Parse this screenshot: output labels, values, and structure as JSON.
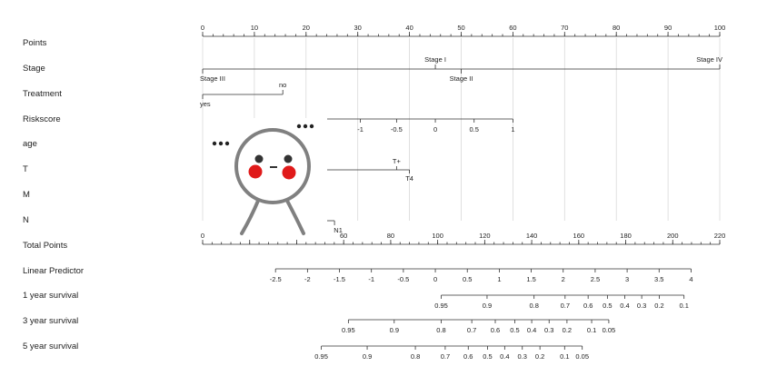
{
  "chart_data": {
    "type": "nomogram",
    "title": "",
    "colors": {
      "axis": "#333333",
      "grid": "#d9d9d9",
      "text": "#222222"
    },
    "rows": [
      {
        "label": "Points",
        "id": "points",
        "scale": {
          "min": 0,
          "max": 100,
          "major": [
            0,
            10,
            20,
            30,
            40,
            50,
            60,
            70,
            80,
            90,
            100
          ],
          "minor_step": 2
        }
      },
      {
        "label": "Stage",
        "id": "stage",
        "categories": [
          {
            "name": "Stage III",
            "points": 0,
            "pos": "below"
          },
          {
            "name": "Stage I",
            "points": 45,
            "pos": "above"
          },
          {
            "name": "Stage II",
            "points": 50,
            "pos": "below"
          },
          {
            "name": "Stage IV",
            "points": 100,
            "pos": "above"
          }
        ]
      },
      {
        "label": "Treatment",
        "id": "treatment",
        "categories": [
          {
            "name": "yes",
            "points": 0,
            "pos": "below"
          },
          {
            "name": "no",
            "points": 15.5,
            "pos": "above"
          }
        ]
      },
      {
        "label": "Riskscore",
        "id": "riskscore",
        "scale_start": 24,
        "ticks": [
          {
            "value": "-1",
            "points": 30.5
          },
          {
            "value": "-0.5",
            "points": 37.5
          },
          {
            "value": "0",
            "points": 45
          },
          {
            "value": "0.5",
            "points": 52.5
          },
          {
            "value": "1",
            "points": 60
          }
        ]
      },
      {
        "label": "age",
        "id": "age",
        "categories": []
      },
      {
        "label": "T",
        "id": "t",
        "categories": [
          {
            "name": "T+",
            "points": 37.5,
            "pos": "above"
          },
          {
            "name": "T4",
            "points": 40,
            "pos": "below"
          }
        ]
      },
      {
        "label": "M",
        "id": "m",
        "categories": []
      },
      {
        "label": "N",
        "id": "n",
        "categories": [
          {
            "name": "N1",
            "points": 25.5,
            "pos": "below"
          }
        ]
      },
      {
        "label": "Total Points",
        "id": "total_points",
        "scale": {
          "min": 0,
          "max": 220,
          "major": [
            0,
            20,
            40,
            60,
            80,
            100,
            120,
            140,
            160,
            180,
            200,
            220
          ],
          "minor_step": 4
        }
      },
      {
        "label": "Linear Predictor",
        "id": "linear_predictor",
        "ticks": [
          {
            "value": "-2.5",
            "points": 31
          },
          {
            "value": "-2",
            "points": 44.6
          },
          {
            "value": "-1.5",
            "points": 58.2
          },
          {
            "value": "-1",
            "points": 71.8
          },
          {
            "value": "-0.5",
            "points": 85.4
          },
          {
            "value": "0",
            "points": 99
          },
          {
            "value": "0.5",
            "points": 112.6
          },
          {
            "value": "1",
            "points": 126.2
          },
          {
            "value": "1.5",
            "points": 139.8
          },
          {
            "value": "2",
            "points": 153.4
          },
          {
            "value": "2.5",
            "points": 167
          },
          {
            "value": "3",
            "points": 180.6
          },
          {
            "value": "3.5",
            "points": 194.2
          },
          {
            "value": "4",
            "points": 207.8
          }
        ]
      },
      {
        "label": "1 year survival",
        "id": "survival_1y",
        "ticks": [
          {
            "value": "0.95",
            "points": 101.5
          },
          {
            "value": "0.9",
            "points": 121
          },
          {
            "value": "0.8",
            "points": 141
          },
          {
            "value": "0.7",
            "points": 154.2
          },
          {
            "value": "0.6",
            "points": 164
          },
          {
            "value": "0.5",
            "points": 172.2
          },
          {
            "value": "0.4",
            "points": 179.6
          },
          {
            "value": "0.3",
            "points": 186.8
          },
          {
            "value": "0.2",
            "points": 194.3
          },
          {
            "value": "0.1",
            "points": 204.8
          }
        ]
      },
      {
        "label": "3 year survival",
        "id": "survival_3y",
        "ticks": [
          {
            "value": "0.95",
            "points": 62
          },
          {
            "value": "0.9",
            "points": 81.5
          },
          {
            "value": "0.8",
            "points": 101.5
          },
          {
            "value": "0.7",
            "points": 114.5
          },
          {
            "value": "0.6",
            "points": 124.5
          },
          {
            "value": "0.5",
            "points": 132.8
          },
          {
            "value": "0.4",
            "points": 140
          },
          {
            "value": "0.3",
            "points": 147.4
          },
          {
            "value": "0.2",
            "points": 155
          },
          {
            "value": "0.1",
            "points": 165.5
          },
          {
            "value": "0.05",
            "points": 172.8
          }
        ]
      },
      {
        "label": "5 year survival",
        "id": "survival_5y",
        "ticks": [
          {
            "value": "0.95",
            "points": 50.5
          },
          {
            "value": "0.9",
            "points": 70
          },
          {
            "value": "0.8",
            "points": 90.5
          },
          {
            "value": "0.7",
            "points": 103.2
          },
          {
            "value": "0.6",
            "points": 113
          },
          {
            "value": "0.5",
            "points": 121.2
          },
          {
            "value": "0.4",
            "points": 128.5
          },
          {
            "value": "0.3",
            "points": 136
          },
          {
            "value": "0.2",
            "points": 143.5
          },
          {
            "value": "0.1",
            "points": 154
          },
          {
            "value": "0.05",
            "points": 161.5
          }
        ]
      }
    ]
  }
}
